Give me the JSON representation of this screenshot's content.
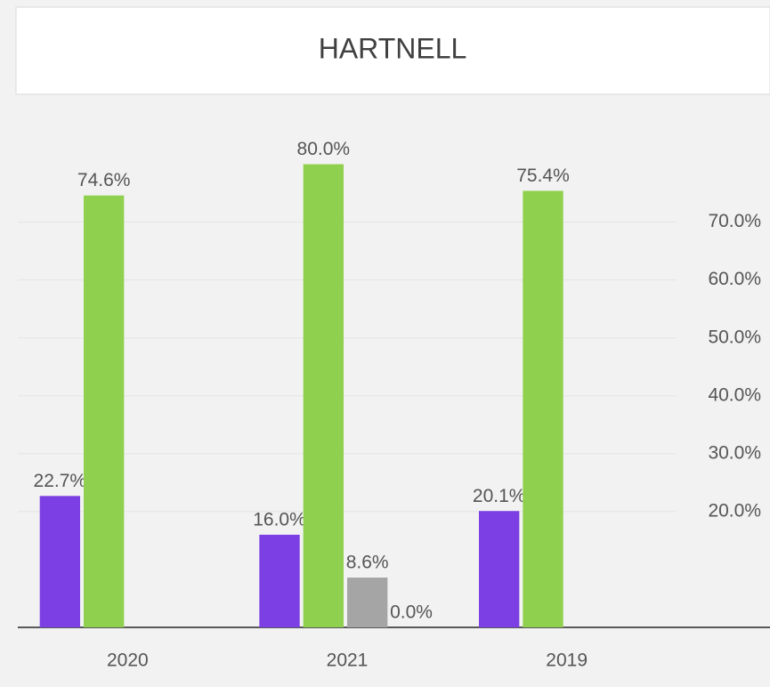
{
  "chart_data": {
    "type": "bar",
    "title": "HARTNELL",
    "categories": [
      "2020",
      "2021",
      "2019"
    ],
    "series": [
      {
        "color": "#7b3fe4",
        "values": [
          22.7,
          16.0,
          20.1
        ],
        "value_labels": [
          "22.7%",
          "16.0%",
          "20.1%"
        ]
      },
      {
        "color": "#8fd14f",
        "values": [
          74.6,
          80.0,
          75.4
        ],
        "value_labels": [
          "74.6%",
          "80.0%",
          "75.4%"
        ]
      },
      {
        "color": "#a5a5a5",
        "values": [
          null,
          8.6,
          null
        ],
        "value_labels": [
          null,
          "8.6%",
          null
        ]
      },
      {
        "color": "#7f7f7f",
        "values": [
          null,
          0.0,
          null
        ],
        "value_labels": [
          null,
          "0.0%",
          null
        ]
      }
    ],
    "ylim": [
      0,
      85
    ],
    "yticks": [
      {
        "value": 20,
        "label": "20.0%"
      },
      {
        "value": 30,
        "label": "30.0%"
      },
      {
        "value": 40,
        "label": "40.0%"
      },
      {
        "value": 50,
        "label": "50.0%"
      },
      {
        "value": 60,
        "label": "60.0%"
      },
      {
        "value": 70,
        "label": "70.0%"
      }
    ]
  }
}
